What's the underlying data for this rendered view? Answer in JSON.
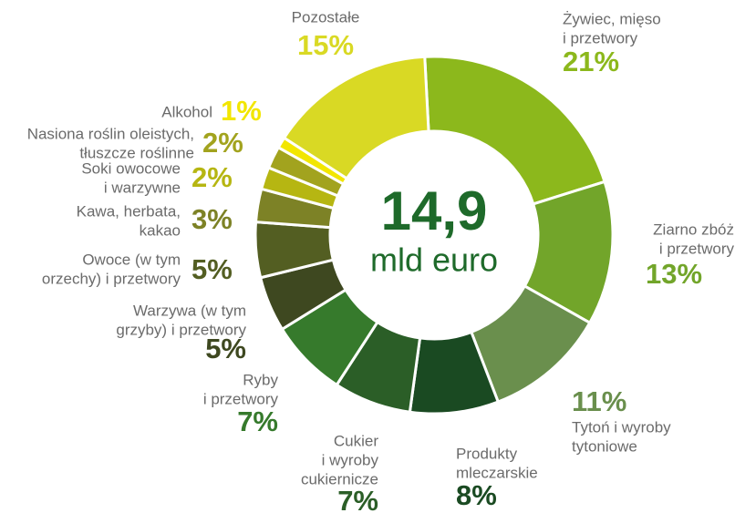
{
  "chart_data": {
    "type": "donut",
    "center_label": [
      "14,9",
      "mld euro"
    ],
    "categories": [
      [
        "Żywiec, mięso",
        "i przetwory"
      ],
      [
        "Ziarno zbóż",
        "i przetwory"
      ],
      [
        "Tytoń i wyroby",
        "tytoniowe"
      ],
      [
        "Produkty",
        "mleczarskie"
      ],
      [
        "Cukier",
        "i wyroby",
        "cukiernicze"
      ],
      [
        "Ryby",
        "i przetwory"
      ],
      [
        "Warzywa (w tym",
        "grzyby) i przetwory"
      ],
      [
        "Owoce (w tym",
        "orzechy) i przetwory"
      ],
      [
        "Kawa, herbata,",
        "kakao"
      ],
      [
        "Soki owocowe",
        "i warzywne"
      ],
      [
        "Nasiona roślin oleistych,",
        "tłuszcze roślinne"
      ],
      [
        "Alkohol"
      ],
      [
        "Pozostałe"
      ]
    ],
    "values": [
      21,
      13,
      11,
      8,
      7,
      7,
      5,
      5,
      3,
      2,
      2,
      1,
      15
    ],
    "value_labels": [
      "21%",
      "13%",
      "11%",
      "8%",
      "7%",
      "7%",
      "5%",
      "5%",
      "3%",
      "2%",
      "2%",
      "1%",
      "15%"
    ],
    "colors": [
      "#8cb81c",
      "#72a52a",
      "#6a8f4d",
      "#1a4a22",
      "#2b5e27",
      "#367a2c",
      "#3e4820",
      "#535e22",
      "#7d8226",
      "#b6b612",
      "#a2a31e",
      "#f2e600",
      "#d9d924"
    ]
  }
}
